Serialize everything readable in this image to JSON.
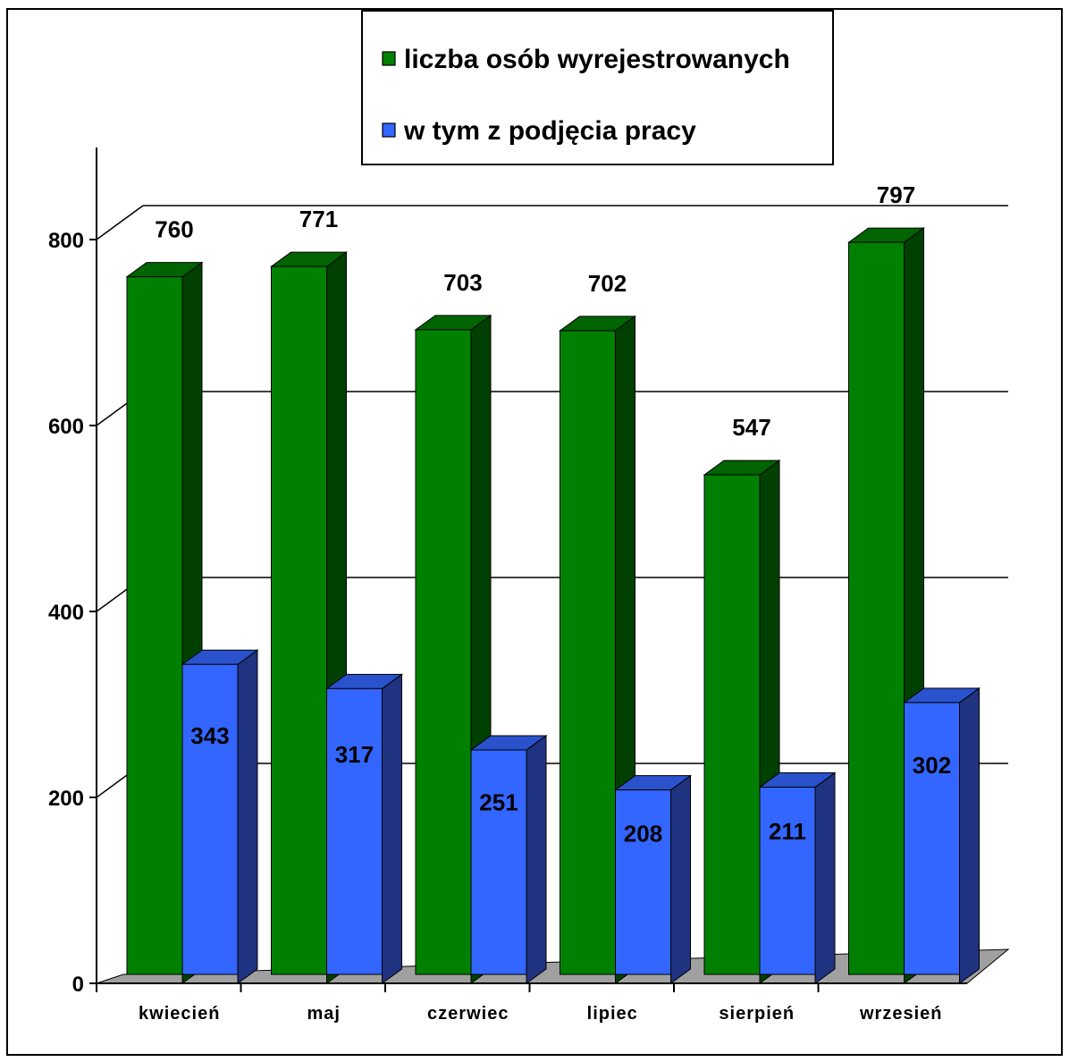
{
  "chart_data": {
    "type": "bar",
    "categories": [
      "kwiecień",
      "maj",
      "czerwiec",
      "lipiec",
      "sierpień",
      "wrzesień"
    ],
    "series": [
      {
        "name": "liczba osób wyrejestrowanych",
        "values": [
          760,
          771,
          703,
          702,
          547,
          797
        ],
        "color": "#008000",
        "side_color": "#004000",
        "top_color": "#006400"
      },
      {
        "name": "w tym z podjęcia pracy",
        "values": [
          343,
          317,
          251,
          208,
          211,
          302
        ],
        "color": "#3366ff",
        "side_color": "#1f3380",
        "top_color": "#2a52cc"
      }
    ],
    "y_ticks": [
      "0",
      "200",
      "400",
      "600",
      "800"
    ],
    "ylim": [
      0,
      800
    ],
    "grid": true,
    "legend_position": "top-right",
    "floor_color": "#a0a0a0",
    "three_d": true
  }
}
